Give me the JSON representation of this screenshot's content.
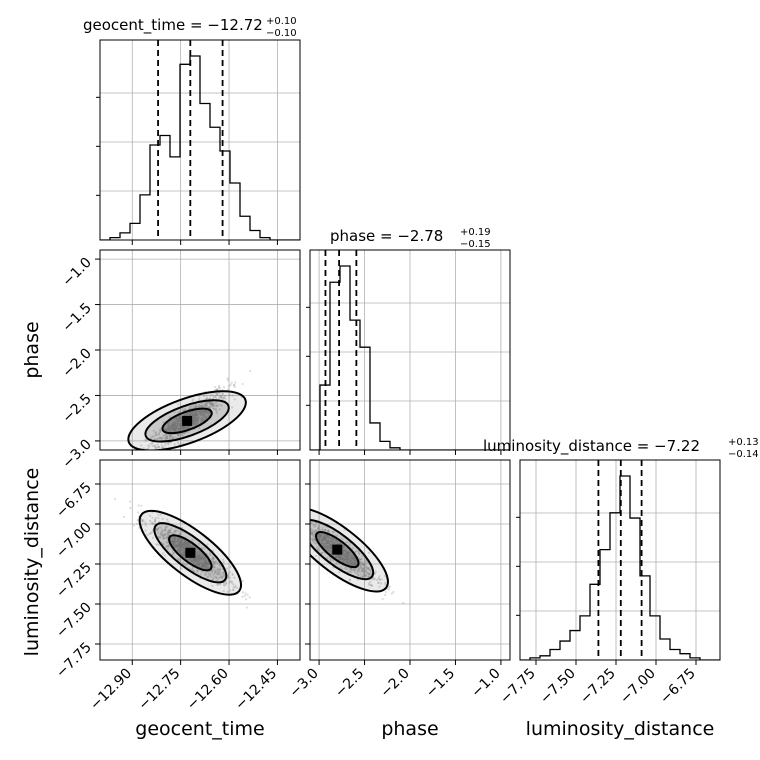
{
  "chart_data": {
    "type": "corner",
    "parameters": [
      "geocent_time",
      "phase",
      "luminosity_distance"
    ],
    "axis_labels": {
      "geocent_time": "geocent_time",
      "phase": "phase",
      "luminosity_distance": "luminosity_distance"
    },
    "ranges": {
      "geocent_time": [
        -13.0,
        -12.38
      ],
      "phase": [
        -3.1,
        -0.9
      ],
      "luminosity_distance": [
        -7.85,
        -6.6
      ]
    },
    "ticks": {
      "geocent_time": {
        "values": [
          -12.9,
          -12.75,
          -12.6,
          -12.45
        ],
        "labels": [
          "−12.90",
          "−12.75",
          "−12.60",
          "−12.45"
        ]
      },
      "phase": {
        "values": [
          -3.0,
          -2.5,
          -2.0,
          -1.5,
          -1.0
        ],
        "labels": [
          "−3.0",
          "−2.5",
          "−2.0",
          "−1.5",
          "−1.0"
        ]
      },
      "luminosity_distance": {
        "values": [
          -7.75,
          -7.5,
          -7.25,
          -7.0,
          -6.75
        ],
        "labels": [
          "−7.75",
          "−7.50",
          "−7.25",
          "−7.00",
          "−6.75"
        ]
      }
    },
    "titles": {
      "geocent_time": {
        "prefix": "geocent_time = −12.72",
        "plus": "+0.10",
        "minus": "−0.10"
      },
      "phase": {
        "prefix": "phase = −2.78",
        "plus": "+0.19",
        "minus": "−0.15"
      },
      "luminosity_distance": {
        "prefix": "luminosity_distance = −7.22",
        "plus": "+0.13",
        "minus": "−0.14"
      }
    },
    "quantiles": {
      "geocent_time": [
        -12.82,
        -12.72,
        -12.62
      ],
      "phase": [
        -2.93,
        -2.78,
        -2.59
      ],
      "luminosity_distance": [
        -7.36,
        -7.22,
        -7.09
      ]
    },
    "histograms": {
      "geocent_time": {
        "edges": [
          -13.0,
          -12.969,
          -12.938,
          -12.907,
          -12.876,
          -12.845,
          -12.814,
          -12.783,
          -12.752,
          -12.721,
          -12.69,
          -12.659,
          -12.628,
          -12.597,
          -12.566,
          -12.535,
          -12.504,
          -12.473,
          -12.442,
          -12.411,
          -12.38
        ],
        "counts": [
          0,
          2,
          6,
          14,
          38,
          80,
          88,
          70,
          148,
          155,
          115,
          95,
          75,
          48,
          20,
          8,
          2,
          0,
          0,
          0
        ]
      },
      "phase": {
        "edges": [
          -3.1,
          -2.99,
          -2.88,
          -2.77,
          -2.66,
          -2.55,
          -2.44,
          -2.33,
          -2.22,
          -2.11,
          -2.0,
          -1.89,
          -1.78,
          -1.67,
          -1.56,
          -1.45,
          -1.34,
          -1.23,
          -1.12,
          -1.01,
          -0.9
        ],
        "counts": [
          0,
          60,
          155,
          170,
          120,
          95,
          25,
          8,
          2,
          0,
          0,
          0,
          0,
          0,
          0,
          0,
          0,
          0,
          0,
          0
        ]
      },
      "luminosity_distance": {
        "edges": [
          -7.85,
          -7.7875,
          -7.725,
          -7.6625,
          -7.6,
          -7.5375,
          -7.475,
          -7.4125,
          -7.35,
          -7.2875,
          -7.225,
          -7.1625,
          -7.1,
          -7.0375,
          -6.975,
          -6.9125,
          -6.85,
          -6.7875,
          -6.725,
          -6.6625,
          -6.6
        ],
        "counts": [
          0,
          2,
          4,
          10,
          18,
          28,
          42,
          72,
          105,
          140,
          175,
          135,
          80,
          42,
          20,
          10,
          6,
          2,
          0,
          0
        ]
      }
    },
    "density_2d": [
      {
        "x": "geocent_time",
        "y": "phase",
        "trend": "positive",
        "peak": [
          -12.73,
          -2.78
        ]
      },
      {
        "x": "geocent_time",
        "y": "luminosity_distance",
        "trend": "negative",
        "peak": [
          -12.72,
          -7.18
        ]
      },
      {
        "x": "phase",
        "y": "luminosity_distance",
        "trend": "negative",
        "peak": [
          -2.8,
          -7.16
        ]
      }
    ],
    "grid": true
  }
}
